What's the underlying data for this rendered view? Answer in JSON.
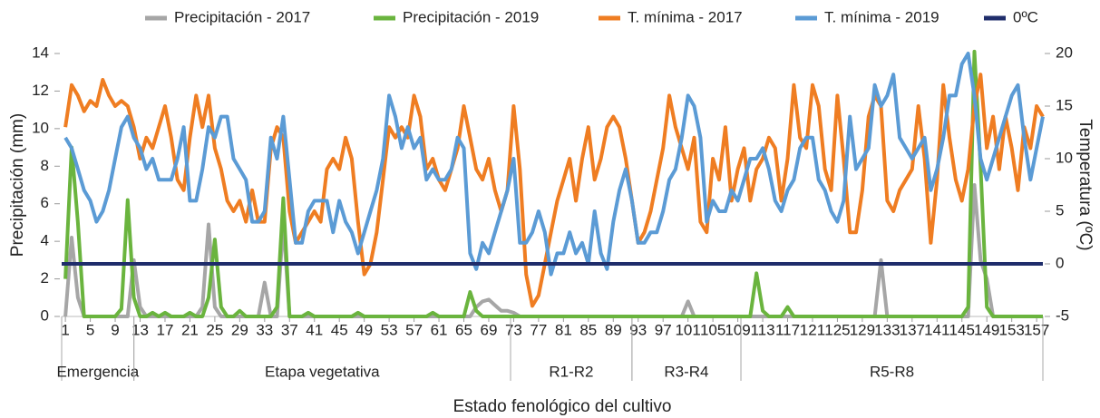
{
  "chart_data": {
    "type": "line",
    "y_label": "Precipitación (mm)",
    "y2_label": "Temperatura (ºC)",
    "x_label": "Estado fenológico del cultivo",
    "legend": "top",
    "x": [
      1,
      2,
      3,
      4,
      5,
      6,
      7,
      8,
      9,
      10,
      11,
      12,
      13,
      14,
      15,
      16,
      17,
      18,
      19,
      20,
      21,
      22,
      23,
      24,
      25,
      26,
      27,
      28,
      29,
      30,
      31,
      32,
      33,
      34,
      35,
      36,
      37,
      38,
      39,
      40,
      41,
      42,
      43,
      44,
      45,
      46,
      47,
      48,
      49,
      50,
      51,
      52,
      53,
      54,
      55,
      56,
      57,
      58,
      59,
      60,
      61,
      62,
      63,
      64,
      65,
      66,
      67,
      68,
      69,
      70,
      71,
      72,
      73,
      74,
      75,
      76,
      77,
      78,
      79,
      80,
      81,
      82,
      83,
      84,
      85,
      86,
      87,
      88,
      89,
      90,
      91,
      92,
      93,
      94,
      95,
      96,
      97,
      98,
      99,
      100,
      101,
      102,
      103,
      104,
      105,
      106,
      107,
      108,
      109,
      110,
      111,
      112,
      113,
      114,
      115,
      116,
      117,
      118,
      119,
      120,
      121,
      122,
      123,
      124,
      125,
      126,
      127,
      128,
      129,
      130,
      131,
      132,
      133,
      134,
      135,
      136,
      137,
      138,
      139,
      140,
      141,
      142,
      143,
      144,
      145,
      146,
      147,
      148,
      149,
      150,
      151,
      152,
      153,
      154,
      155,
      156,
      157,
      158
    ],
    "xlim": [
      0.4,
      158
    ],
    "xticks": [
      1,
      5,
      9,
      13,
      17,
      21,
      25,
      29,
      33,
      37,
      41,
      45,
      49,
      53,
      57,
      61,
      65,
      69,
      73,
      77,
      81,
      85,
      89,
      93,
      97,
      101,
      105,
      109,
      113,
      117,
      121,
      125,
      129,
      133,
      137,
      141,
      145,
      149,
      153,
      157
    ],
    "ylim": [
      0,
      14
    ],
    "yticks": [
      0,
      2,
      4,
      6,
      8,
      10,
      12,
      14
    ],
    "y2lim": [
      -5,
      20
    ],
    "y2ticks": [
      -5,
      0,
      5,
      10,
      15,
      20
    ],
    "stages": [
      {
        "label": "Emergencia",
        "start": 0.4,
        "end": 12
      },
      {
        "label": "Etapa vegetativa",
        "start": 12,
        "end": 72.5
      },
      {
        "label": "R1-R2",
        "start": 72.5,
        "end": 92
      },
      {
        "label": "R3-R4",
        "start": 92,
        "end": 109.5
      },
      {
        "label": "R5-R8",
        "start": 109.5,
        "end": 158
      }
    ],
    "series": [
      {
        "name": "Precipitación - 2017",
        "color": "#a6a6a6",
        "axis": "y",
        "values": [
          0,
          4.2,
          1,
          0,
          0,
          0,
          0,
          0,
          0,
          0,
          0,
          3,
          0.5,
          0,
          0,
          0,
          0,
          0,
          0,
          0,
          0,
          0,
          0.5,
          4.9,
          0.5,
          0,
          0,
          0,
          0,
          0,
          0,
          0,
          1.8,
          0,
          0,
          5,
          0,
          0,
          0,
          0,
          0,
          0,
          0,
          0,
          0,
          0,
          0,
          0,
          0,
          0,
          0,
          0,
          0,
          0,
          0,
          0,
          0,
          0,
          0,
          0,
          0,
          0,
          0,
          0,
          0,
          0,
          0.5,
          0.8,
          0.9,
          0.6,
          0.3,
          0.3,
          0.2,
          0,
          0,
          0,
          0,
          0,
          0,
          0,
          0,
          0,
          0,
          0,
          0,
          0,
          0,
          0,
          0,
          0,
          0,
          0,
          0,
          0,
          0,
          0,
          0,
          0,
          0,
          0,
          0.8,
          0,
          0,
          0,
          0,
          0,
          0,
          0,
          0,
          0,
          0,
          0,
          0,
          0,
          0,
          0,
          0,
          0,
          0,
          0,
          0,
          0,
          0,
          0,
          0,
          0,
          0,
          0,
          0,
          0,
          0,
          3,
          0,
          0,
          0,
          0,
          0,
          0,
          0,
          0,
          0,
          0,
          0,
          0,
          0,
          0,
          7,
          3,
          2,
          0,
          0,
          0,
          0,
          0,
          0,
          0,
          0,
          0
        ]
      },
      {
        "name": "Precipitación - 2019",
        "color": "#6ab43e",
        "axis": "y",
        "values": [
          2,
          9,
          5,
          0,
          0,
          0,
          0,
          0,
          0,
          0.4,
          6.2,
          1,
          0,
          0,
          0.2,
          0,
          0.2,
          0,
          0,
          0,
          0.2,
          0,
          0,
          1,
          4.1,
          0.5,
          0,
          0,
          0.3,
          0,
          0,
          0,
          0,
          0,
          0.5,
          6.3,
          0,
          0,
          0,
          0.2,
          0,
          0,
          0,
          0,
          0,
          0,
          0,
          0.2,
          0,
          0,
          0,
          0,
          0,
          0,
          0,
          0,
          0,
          0,
          0,
          0.2,
          0,
          0,
          0,
          0,
          0,
          1.3,
          0.3,
          0,
          0,
          0,
          0,
          0,
          0,
          0,
          0,
          0,
          0,
          0,
          0,
          0,
          0,
          0,
          0,
          0,
          0,
          0,
          0,
          0,
          0,
          0,
          0,
          0,
          0,
          0,
          0,
          0,
          0,
          0,
          0,
          0,
          0,
          0,
          0,
          0,
          0,
          0,
          0,
          0,
          0,
          0,
          0,
          2.3,
          0.3,
          0,
          0,
          0,
          0.5,
          0,
          0,
          0,
          0,
          0,
          0,
          0,
          0,
          0,
          0,
          0,
          0,
          0,
          0,
          0,
          0,
          0,
          0,
          0,
          0,
          0,
          0,
          0,
          0,
          0,
          0,
          0,
          0,
          0.5,
          14.1,
          8,
          0.5,
          0,
          0,
          0,
          0,
          0,
          0,
          0,
          0,
          0
        ]
      },
      {
        "name": "T. mínima - 2017",
        "color": "#ef7d22",
        "axis": "y2",
        "values": [
          13,
          17,
          16,
          14.5,
          15.5,
          15,
          17.5,
          16,
          15,
          15.5,
          15,
          13,
          10,
          12,
          11,
          13,
          15,
          12,
          8,
          7,
          12,
          16,
          13,
          16,
          11,
          9,
          6,
          5,
          6,
          4,
          7,
          4,
          4,
          11,
          13,
          12,
          5,
          2,
          3,
          4,
          5,
          4,
          9,
          10,
          9,
          12,
          10,
          4,
          -1,
          0,
          3,
          8,
          13,
          12,
          13,
          12,
          16,
          14,
          9,
          10,
          8,
          7,
          9,
          11,
          15,
          12,
          9,
          8,
          10,
          7,
          5,
          7,
          15,
          9,
          -1,
          -4,
          -3,
          0,
          3,
          6,
          8,
          10,
          6,
          10,
          13,
          8,
          10,
          13,
          14,
          13,
          10,
          6,
          2,
          3,
          5,
          8,
          11,
          16,
          13,
          11,
          9,
          12,
          4,
          3,
          10,
          8,
          13,
          6,
          9,
          11,
          6,
          9,
          10,
          12,
          11,
          6,
          10,
          17,
          12,
          11,
          17,
          15,
          9,
          7,
          16,
          10,
          3,
          3,
          7,
          14,
          16,
          15,
          6,
          5,
          7,
          8,
          9,
          15,
          10,
          2,
          8,
          17,
          12,
          8,
          6,
          9,
          15,
          18,
          11,
          14,
          9,
          14,
          11,
          7,
          13,
          11,
          15,
          14
        ]
      },
      {
        "name": "T. mínima - 2019",
        "color": "#5b9bd5",
        "axis": "y2",
        "values": [
          12,
          11,
          9,
          7,
          6,
          4,
          5,
          7,
          10,
          13,
          14,
          12,
          11,
          9,
          10,
          8,
          8,
          8,
          10,
          13,
          6,
          6,
          9,
          13,
          12,
          14,
          14,
          10,
          9,
          8,
          4,
          4,
          5,
          12,
          10,
          14,
          8,
          2,
          2,
          5,
          6,
          6,
          6,
          3,
          6,
          4,
          3,
          1,
          3,
          5,
          7,
          10,
          16,
          14,
          11,
          13,
          11,
          12,
          8,
          9,
          8,
          8,
          9,
          12,
          11,
          1,
          -0.5,
          2,
          1,
          3,
          5,
          7,
          10,
          2,
          2,
          3,
          5,
          3,
          -1,
          1,
          1,
          3,
          1,
          2,
          0,
          5,
          1,
          -0.5,
          4,
          7,
          9,
          6,
          2,
          2,
          3,
          3,
          5,
          8,
          9,
          12,
          16,
          15,
          12,
          4,
          6,
          5,
          5,
          7,
          6,
          8,
          10,
          10,
          11,
          9,
          6,
          5,
          7,
          8,
          11,
          12,
          12,
          8,
          7,
          5,
          4,
          6,
          14,
          9,
          10,
          11,
          17,
          15,
          16,
          18,
          12,
          11,
          10,
          11,
          12,
          7,
          9,
          12,
          16,
          16,
          19,
          20,
          16,
          10,
          8,
          10,
          12,
          14,
          16,
          17,
          12,
          8,
          11,
          14
        ]
      },
      {
        "name": "0ºC",
        "color": "#1f2d6b",
        "axis": "y2",
        "value": 0
      }
    ]
  }
}
